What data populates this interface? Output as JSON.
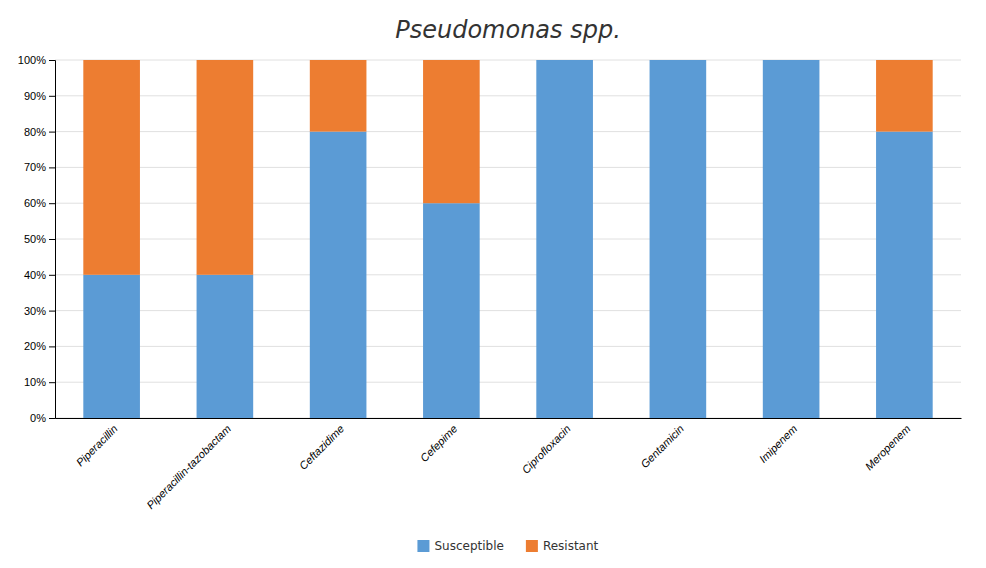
{
  "chart_data": {
    "type": "bar",
    "title": "Pseudomonas spp.",
    "categories": [
      "Piperacillin",
      "Piperacillin-tazobactam",
      "Ceftazidime",
      "Cefepime",
      "Ciprofloxacin",
      "Gentamicin",
      "Imipenem",
      "Meropenem"
    ],
    "series": [
      {
        "name": "Susceptible",
        "color": "#5B9BD5",
        "values": [
          40,
          40,
          80,
          60,
          100,
          100,
          100,
          80
        ]
      },
      {
        "name": "Resistant",
        "color": "#ED7D31",
        "values": [
          60,
          60,
          20,
          40,
          0,
          0,
          0,
          20
        ]
      }
    ],
    "stacked": true,
    "ylim": [
      0,
      100
    ],
    "yticks": [
      {
        "value": 0,
        "label": "0%"
      },
      {
        "value": 10,
        "label": "10%"
      },
      {
        "value": 20,
        "label": "20%"
      },
      {
        "value": 30,
        "label": "30%"
      },
      {
        "value": 40,
        "label": "40%"
      },
      {
        "value": 50,
        "label": "50%"
      },
      {
        "value": 60,
        "label": "60%"
      },
      {
        "value": 70,
        "label": "70%"
      },
      {
        "value": 80,
        "label": "80%"
      },
      {
        "value": 90,
        "label": "90%"
      },
      {
        "value": 100,
        "label": "100%"
      }
    ],
    "grid": true,
    "legend": "bottom"
  }
}
